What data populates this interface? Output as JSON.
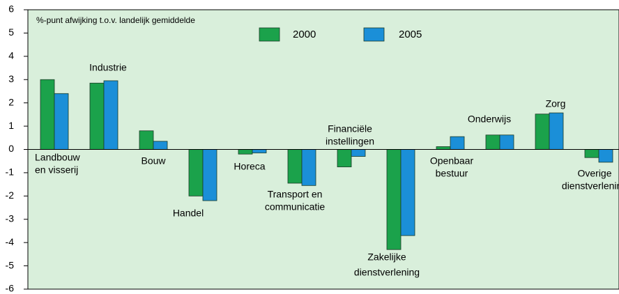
{
  "chart_data": {
    "type": "bar",
    "subtitle": "%-punt afwijking t.o.v. landelijk gemiddelde",
    "categories": [
      [
        "Landbouw",
        "en visserij"
      ],
      [
        "Industrie"
      ],
      [
        "Bouw"
      ],
      [
        "Handel"
      ],
      [
        "Horeca"
      ],
      [
        "Transport en",
        "communicatie"
      ],
      [
        "Financiële",
        "instellingen"
      ],
      [
        "Zakelijke",
        "dienstverlening"
      ],
      [
        "Openbaar",
        "bestuur"
      ],
      [
        "Onderwijs"
      ],
      [
        "Zorg"
      ],
      [
        "Overige",
        "dienstverlening"
      ]
    ],
    "series": [
      {
        "name": "2000",
        "color": "#1ba24b",
        "values": [
          3.0,
          2.85,
          0.8,
          -2.0,
          -0.2,
          -1.45,
          -0.75,
          -4.3,
          0.12,
          0.62,
          1.52,
          -0.35
        ]
      },
      {
        "name": "2005",
        "color": "#1b8fd8",
        "values": [
          2.4,
          2.95,
          0.35,
          -2.2,
          -0.15,
          -1.55,
          -0.3,
          -3.7,
          0.55,
          0.62,
          1.57,
          -0.55
        ]
      }
    ],
    "ylim": [
      -6,
      6
    ],
    "yticks": [
      -6,
      -5,
      -4,
      -3,
      -2,
      -1,
      0,
      1,
      2,
      3,
      4,
      5,
      6
    ]
  }
}
